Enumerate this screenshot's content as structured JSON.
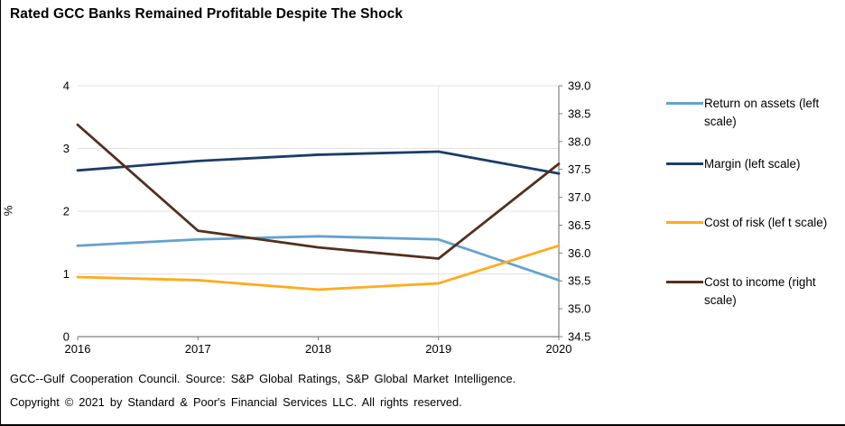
{
  "title": "Rated GCC Banks Remained Profitable Despite The Shock",
  "chart_data": {
    "type": "line",
    "categories": [
      "2016",
      "2017",
      "2018",
      "2019",
      "2020"
    ],
    "series": [
      {
        "name": "Return on assets (left scale)",
        "axis": "left",
        "color": "#64A2CE",
        "values": [
          1.45,
          1.55,
          1.6,
          1.55,
          0.9
        ]
      },
      {
        "name": "Margin (left scale)",
        "axis": "left",
        "color": "#1C3D68",
        "values": [
          2.65,
          2.8,
          2.9,
          2.95,
          2.6
        ]
      },
      {
        "name": "Cost of risk (lef t scale)",
        "axis": "left",
        "color": "#FFAB1E",
        "values": [
          0.95,
          0.9,
          0.75,
          0.85,
          1.45
        ]
      },
      {
        "name": "Cost to income (right scale)",
        "axis": "right",
        "color": "#53301F",
        "values": [
          38.3,
          36.4,
          36.1,
          35.9,
          37.6
        ]
      }
    ],
    "left_axis": {
      "label": "%",
      "min": 0,
      "max": 4,
      "ticks": [
        "0",
        "1",
        "2",
        "3",
        "4"
      ]
    },
    "right_axis": {
      "min": 34.5,
      "max": 39.0,
      "ticks": [
        "34.5",
        "35.0",
        "35.5",
        "36.0",
        "36.5",
        "37.0",
        "37.5",
        "38.0",
        "38.5",
        "39.0"
      ]
    },
    "grid": "horizontal",
    "legend_position": "right"
  },
  "footnotes": {
    "line1": "GCC--Gulf Cooperation Council. Source: S&P Global Ratings, S&P Global Market Intelligence.",
    "line2": "Copyright © 2021 by Standard & Poor's Financial Services LLC. All rights reserved."
  }
}
